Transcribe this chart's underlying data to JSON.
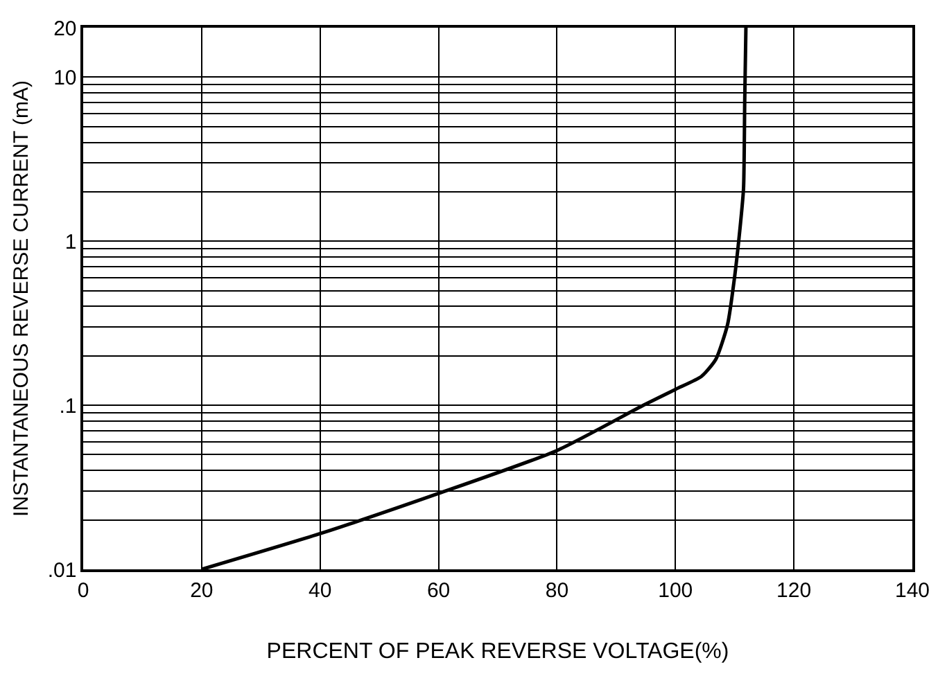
{
  "chart_data": {
    "type": "line",
    "xlabel": "PERCENT OF PEAK REVERSE VOLTAGE(%)",
    "ylabel": "INSTANTANEOUS REVERSE CURRENT (mA)",
    "x": [
      20,
      40,
      60,
      80,
      94.6,
      100,
      104.4,
      106.8,
      108.8,
      110,
      111,
      111.5,
      111.7,
      111.9
    ],
    "series": [
      {
        "color": "#000000",
        "values": [
          0.01,
          0.0165,
          0.029,
          0.053,
          0.1,
          0.125,
          0.15,
          0.19,
          0.31,
          0.61,
          1.3,
          2.1,
          7.2,
          20
        ]
      }
    ],
    "log": "y",
    "xlim": [
      0,
      140
    ],
    "ylim": [
      0.01,
      20
    ],
    "xticks": [
      0,
      20,
      40,
      60,
      80,
      100,
      120,
      140
    ],
    "yticks": [
      {
        "value": 0.01,
        "label": ".01"
      },
      {
        "value": 0.02,
        "label": null
      },
      {
        "value": 0.03,
        "label": null
      },
      {
        "value": 0.04,
        "label": null
      },
      {
        "value": 0.05,
        "label": null
      },
      {
        "value": 0.06,
        "label": null
      },
      {
        "value": 0.07,
        "label": null
      },
      {
        "value": 0.08,
        "label": null
      },
      {
        "value": 0.09,
        "label": null
      },
      {
        "value": 0.1,
        "label": ".1"
      },
      {
        "value": 0.2,
        "label": null
      },
      {
        "value": 0.3,
        "label": null
      },
      {
        "value": 0.4,
        "label": null
      },
      {
        "value": 0.5,
        "label": null
      },
      {
        "value": 0.6,
        "label": null
      },
      {
        "value": 0.7,
        "label": null
      },
      {
        "value": 0.8,
        "label": null
      },
      {
        "value": 0.9,
        "label": null
      },
      1,
      {
        "value": 2,
        "label": null
      },
      {
        "value": 3,
        "label": null
      },
      {
        "value": 4,
        "label": null
      },
      {
        "value": 5,
        "label": null
      },
      {
        "value": 6,
        "label": null
      },
      {
        "value": 7,
        "label": null
      },
      {
        "value": 8,
        "label": null
      },
      {
        "value": 9,
        "label": null
      },
      10,
      20
    ],
    "grid": true,
    "marker": "none",
    "line_style": "solid"
  }
}
